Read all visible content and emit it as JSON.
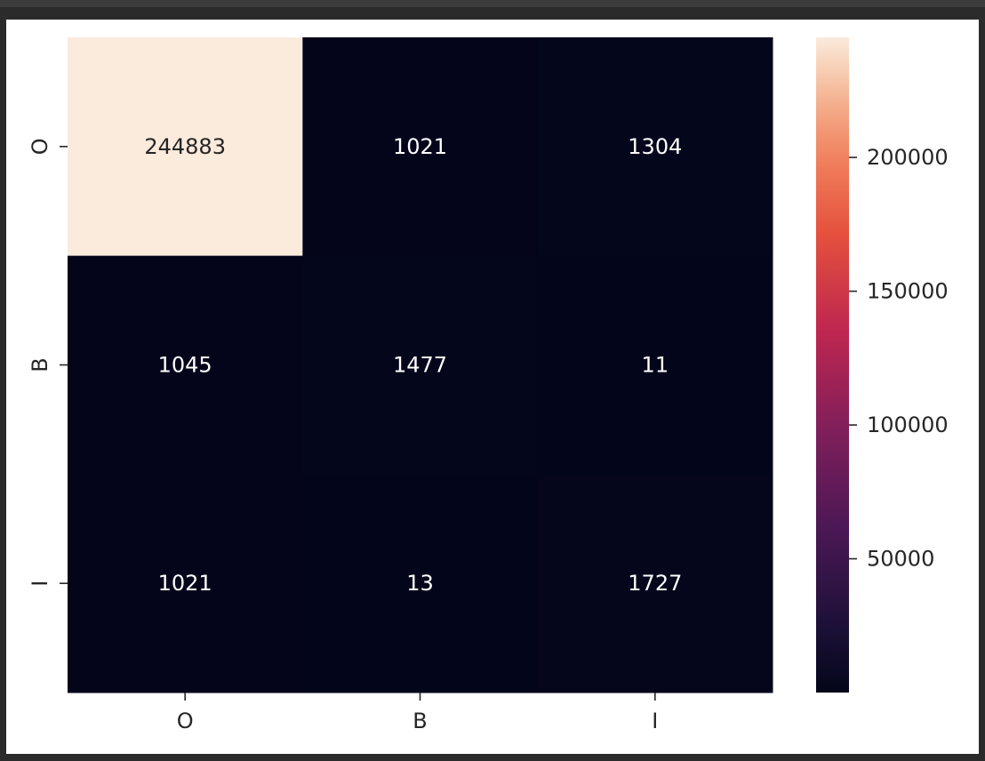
{
  "chart_data": {
    "type": "heatmap",
    "title": "",
    "xlabel": "",
    "ylabel": "",
    "x_categories": [
      "O",
      "B",
      "I"
    ],
    "y_categories": [
      "O",
      "B",
      "I"
    ],
    "values": [
      [
        244883,
        1021,
        1304
      ],
      [
        1045,
        1477,
        11
      ],
      [
        1021,
        13,
        1727
      ]
    ],
    "colormap": "rocket",
    "color_range": [
      11,
      244883
    ],
    "colorbar_ticks": [
      {
        "value": 50000,
        "label": "50000"
      },
      {
        "value": 100000,
        "label": "100000"
      },
      {
        "value": 150000,
        "label": "150000"
      },
      {
        "value": 200000,
        "label": "200000"
      }
    ],
    "annotation_colors": {
      "on_dark": "#ffffff",
      "on_light": "#262626"
    },
    "colors": {
      "rocket_low": "#03051a",
      "rocket_high": "#faebdd"
    }
  }
}
